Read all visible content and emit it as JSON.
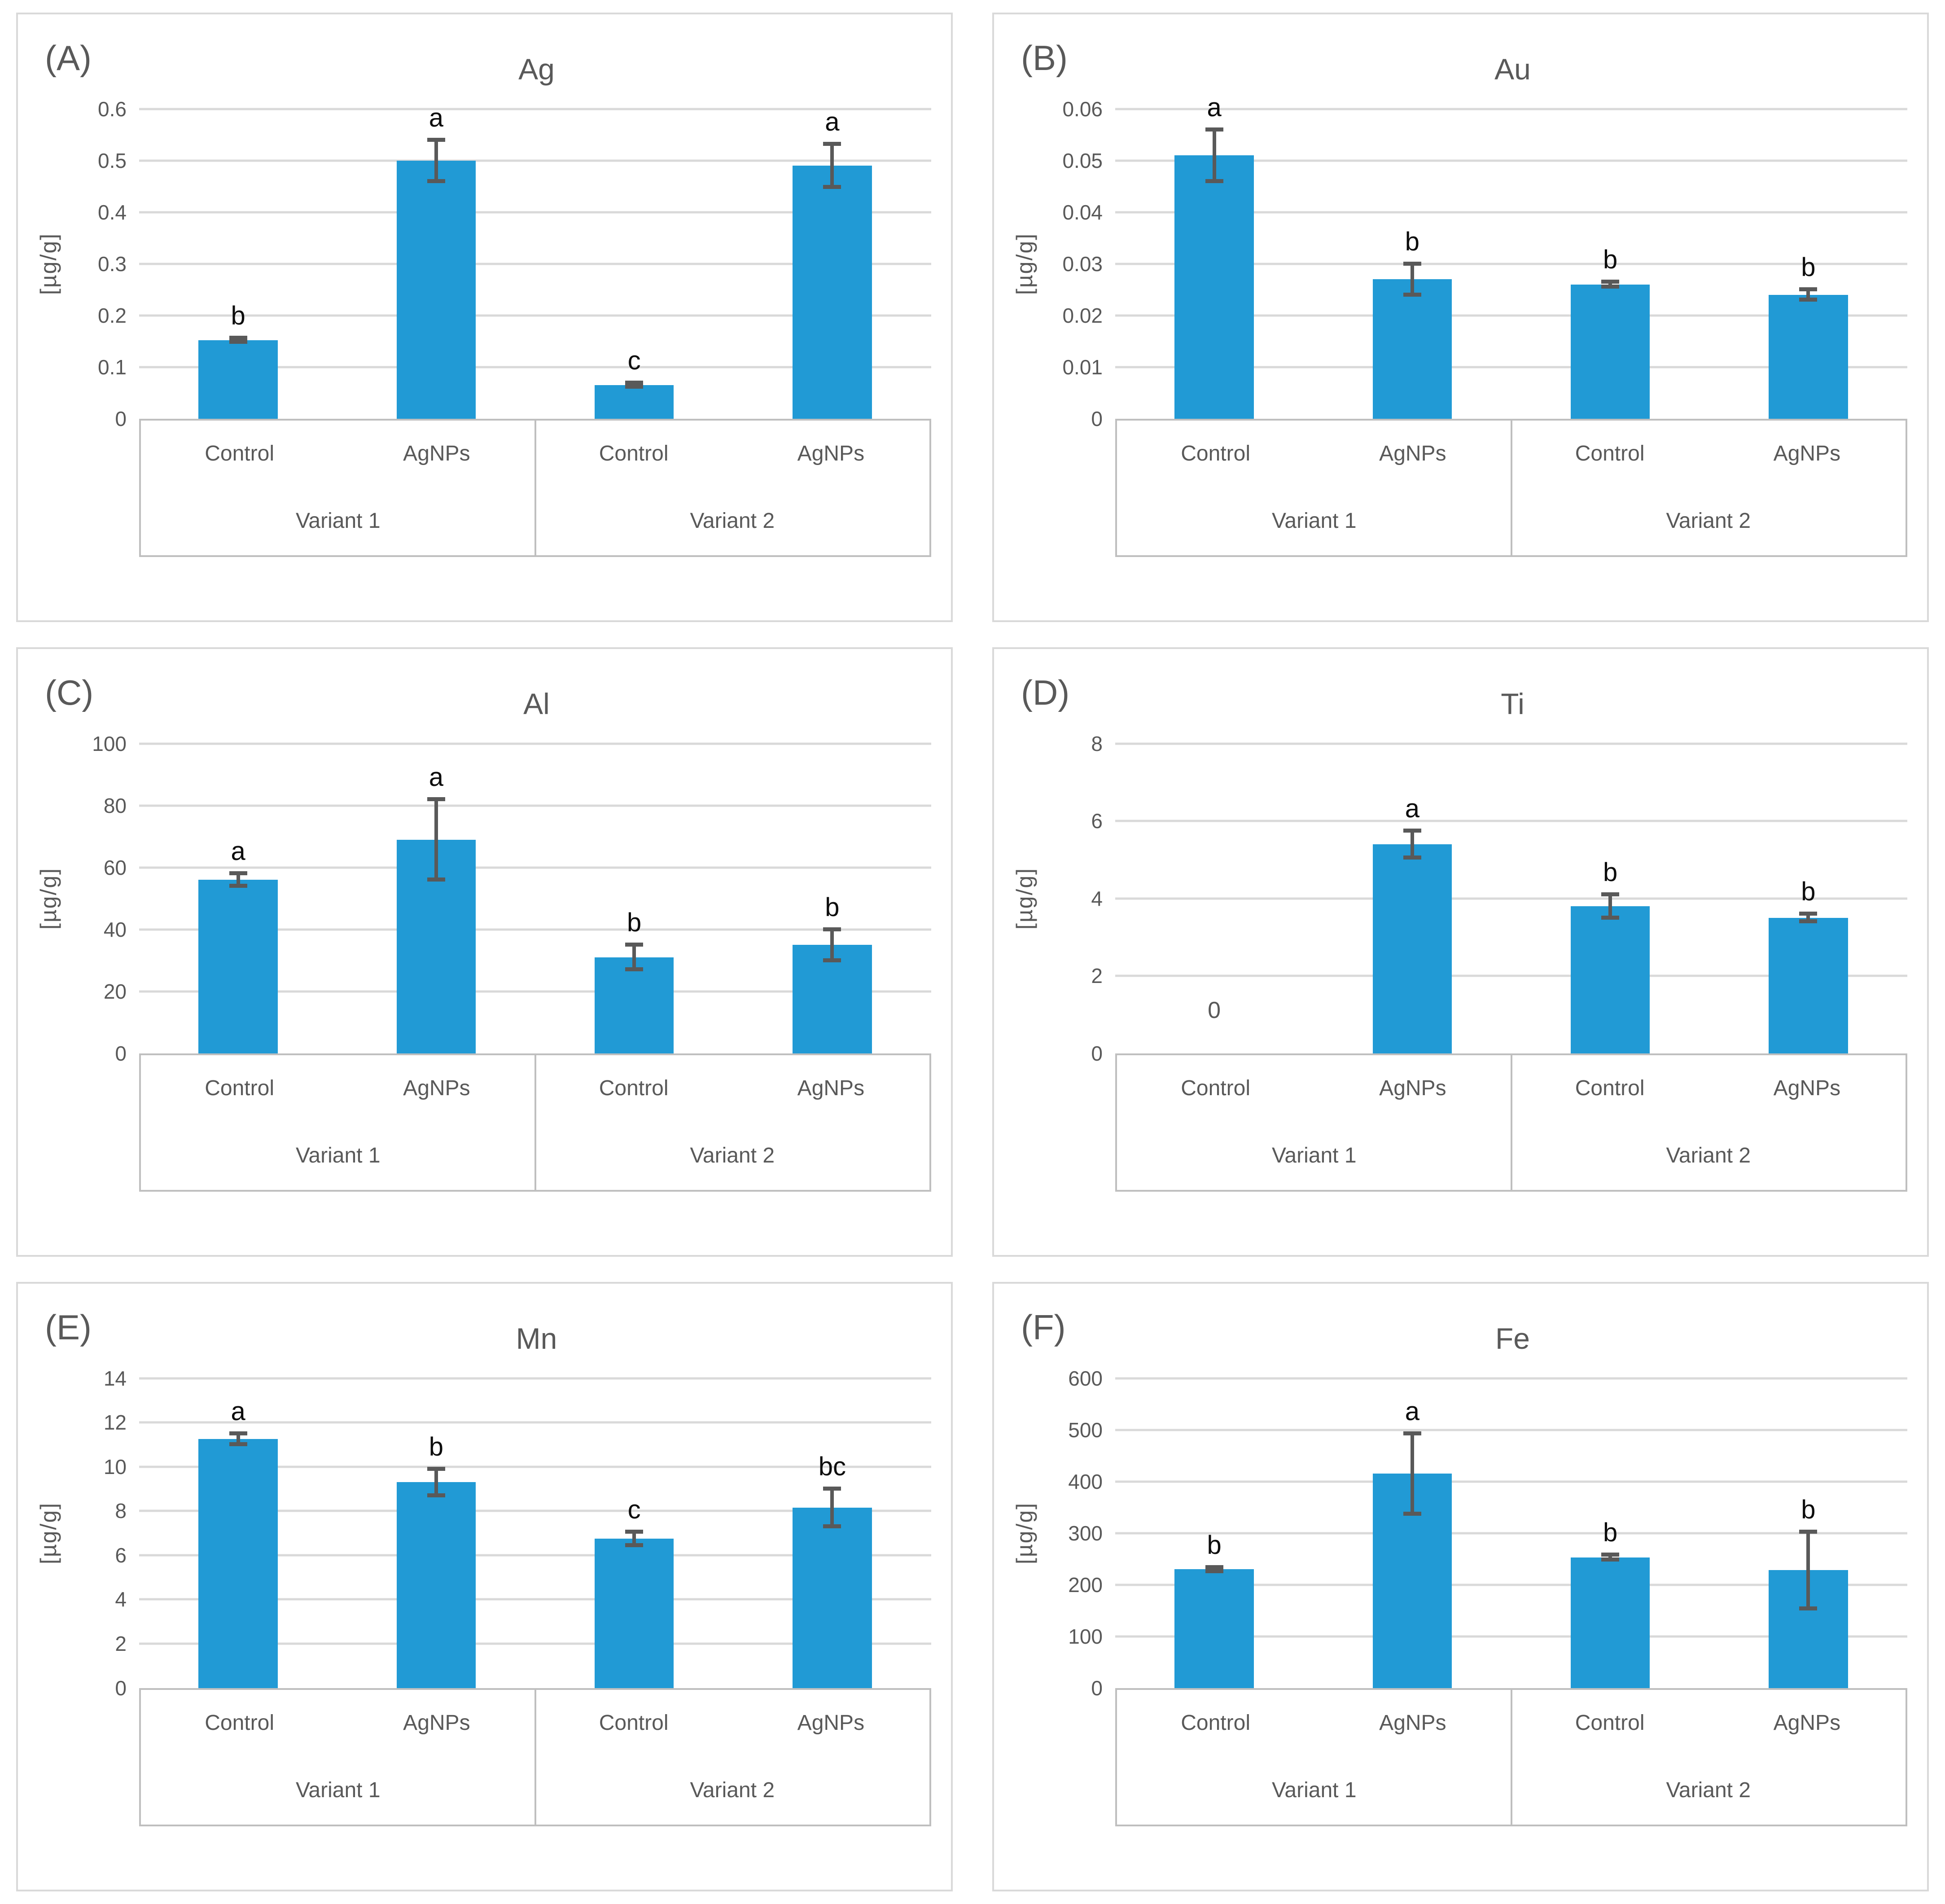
{
  "figure": {
    "ylabel": "[µg/g]",
    "colors": {
      "bar": "#219ad5",
      "gridline": "#d9d9d9",
      "axis_border": "#bfbfbf",
      "text_gray": "#595959",
      "sig_black": "#0d0d0d",
      "error_bar": "#595959"
    }
  },
  "chart_data": [
    {
      "type": "bar",
      "panel_letter": "(A)",
      "title": "Ag",
      "ylabel": "[µg/g]",
      "ylim": [
        0,
        0.6
      ],
      "ytick_labels": [
        "0",
        "0.1",
        "0.2",
        "0.3",
        "0.4",
        "0.5",
        "0.6"
      ],
      "grid": true,
      "legend": "none",
      "group_labels": [
        "Variant 1",
        "Variant 2"
      ],
      "categories": [
        "Control",
        "AgNPs",
        "Control",
        "AgNPs"
      ],
      "values": [
        0.152,
        0.5,
        0.065,
        0.49
      ],
      "errors": [
        0.004,
        0.04,
        0.004,
        0.042
      ],
      "sig_labels": [
        "b",
        "a",
        "c",
        "a"
      ]
    },
    {
      "type": "bar",
      "panel_letter": "(B)",
      "title": "Au",
      "ylabel": "[µg/g]",
      "ylim": [
        0,
        0.06
      ],
      "ytick_labels": [
        "0",
        "0.01",
        "0.02",
        "0.03",
        "0.04",
        "0.05",
        "0.06"
      ],
      "grid": true,
      "legend": "none",
      "group_labels": [
        "Variant 1",
        "Variant 2"
      ],
      "categories": [
        "Control",
        "AgNPs",
        "Control",
        "AgNPs"
      ],
      "values": [
        0.051,
        0.027,
        0.026,
        0.024
      ],
      "errors": [
        0.005,
        0.003,
        0.0005,
        0.001
      ],
      "sig_labels": [
        "a",
        "b",
        "b",
        "b"
      ]
    },
    {
      "type": "bar",
      "panel_letter": "(C)",
      "title": "Al",
      "ylabel": "[µg/g]",
      "ylim": [
        0,
        100
      ],
      "ytick_labels": [
        "0",
        "20",
        "40",
        "60",
        "80",
        "100"
      ],
      "grid": true,
      "legend": "none",
      "group_labels": [
        "Variant 1",
        "Variant 2"
      ],
      "categories": [
        "Control",
        "AgNPs",
        "Control",
        "AgNPs"
      ],
      "values": [
        56,
        69,
        31,
        35
      ],
      "errors": [
        2,
        13,
        4,
        5
      ],
      "sig_labels": [
        "a",
        "a",
        "b",
        "b"
      ]
    },
    {
      "type": "bar",
      "panel_letter": "(D)",
      "title": "Ti",
      "ylabel": "[µg/g]",
      "ylim": [
        0,
        8
      ],
      "ytick_labels": [
        "0",
        "2",
        "4",
        "6",
        "8"
      ],
      "grid": true,
      "legend": "none",
      "group_labels": [
        "Variant 1",
        "Variant 2"
      ],
      "categories": [
        "Control",
        "AgNPs",
        "Control",
        "AgNPs"
      ],
      "values": [
        0,
        5.4,
        3.8,
        3.5
      ],
      "errors": [
        0,
        0.35,
        0.3,
        0.1
      ],
      "sig_labels": [
        "0",
        "a",
        "b",
        "b"
      ]
    },
    {
      "type": "bar",
      "panel_letter": "(E)",
      "title": "Mn",
      "ylabel": "[µg/g]",
      "ylim": [
        0,
        14
      ],
      "ytick_labels": [
        "0",
        "2",
        "4",
        "6",
        "8",
        "10",
        "12",
        "14"
      ],
      "grid": true,
      "legend": "none",
      "group_labels": [
        "Variant 1",
        "Variant 2"
      ],
      "categories": [
        "Control",
        "AgNPs",
        "Control",
        "AgNPs"
      ],
      "values": [
        11.25,
        9.3,
        6.75,
        8.15
      ],
      "errors": [
        0.25,
        0.6,
        0.3,
        0.85
      ],
      "sig_labels": [
        "a",
        "b",
        "c",
        "bc"
      ]
    },
    {
      "type": "bar",
      "panel_letter": "(F)",
      "title": "Fe",
      "ylabel": "[µg/g]",
      "ylim": [
        0,
        600
      ],
      "ytick_labels": [
        "0",
        "100",
        "200",
        "300",
        "400",
        "500",
        "600"
      ],
      "grid": true,
      "legend": "none",
      "group_labels": [
        "Variant 1",
        "Variant 2"
      ],
      "categories": [
        "Control",
        "AgNPs",
        "Control",
        "AgNPs"
      ],
      "values": [
        230,
        415,
        253,
        228
      ],
      "errors": [
        4,
        78,
        5,
        74
      ],
      "sig_labels": [
        "b",
        "a",
        "b",
        "b"
      ]
    }
  ]
}
